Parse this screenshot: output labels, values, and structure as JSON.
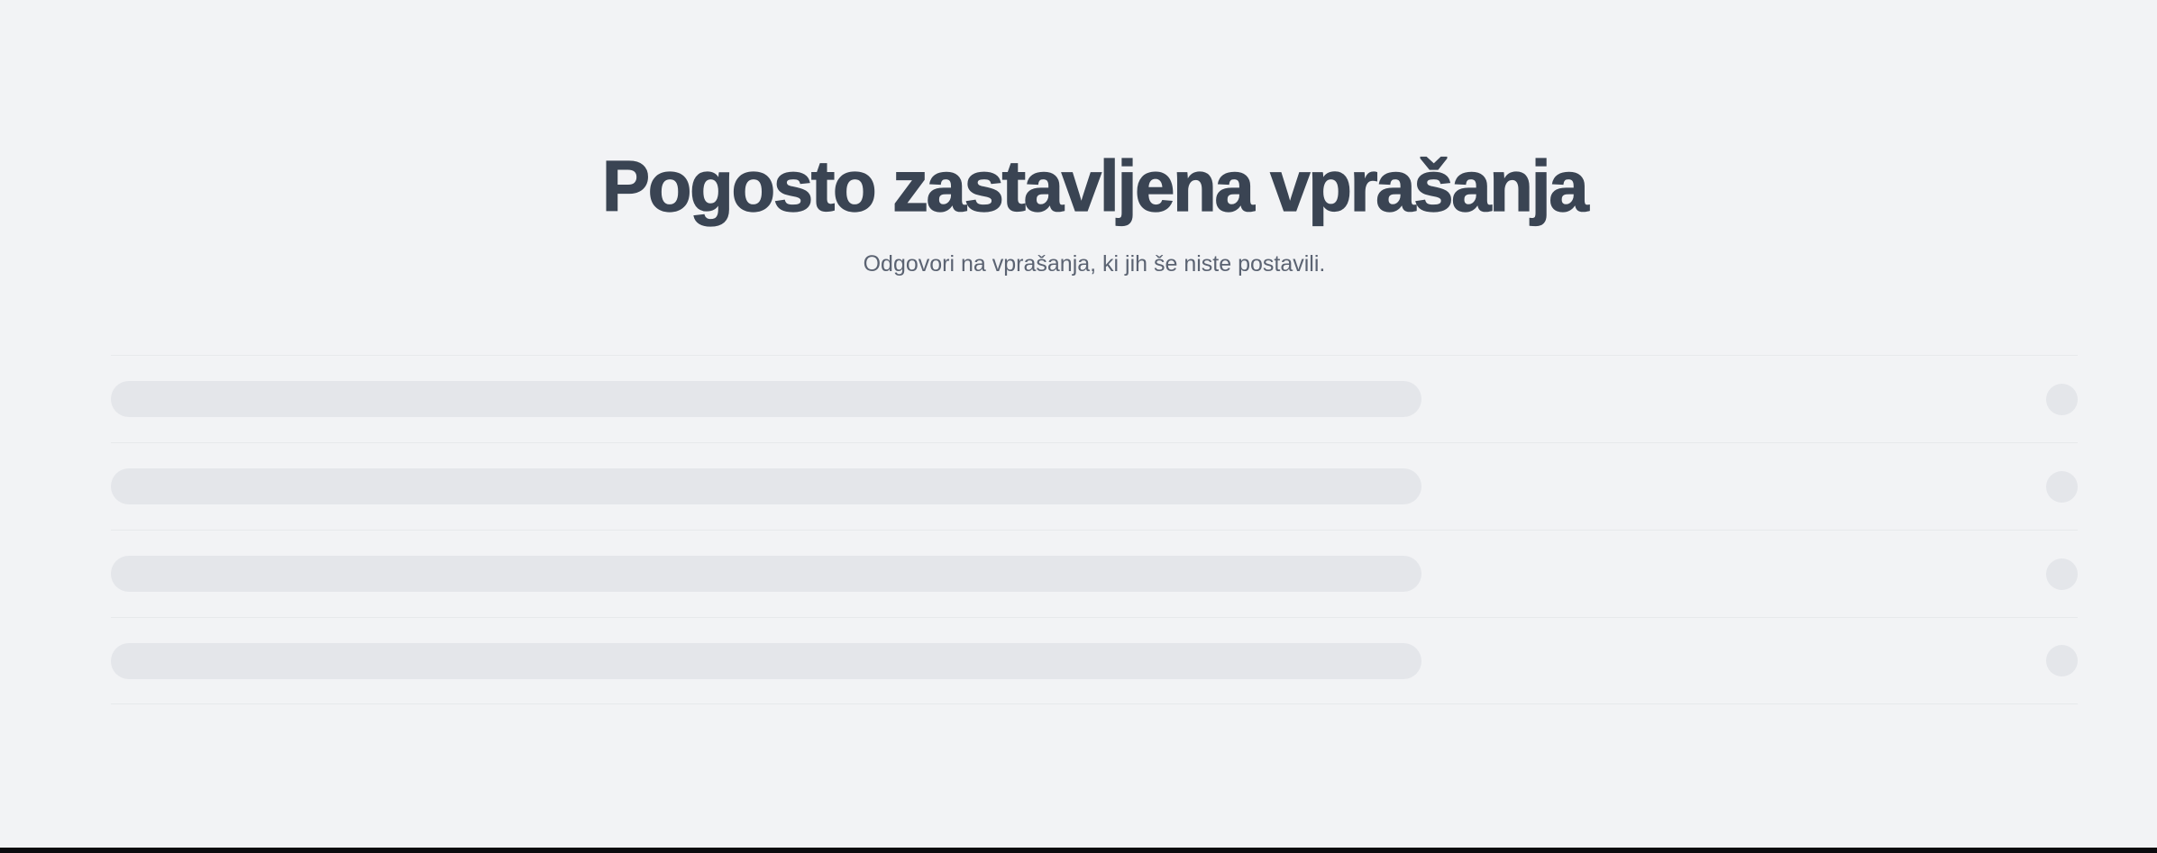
{
  "theme": {
    "page_bg": "#f2f3f5",
    "title_color": "#3a4453",
    "subtitle_color": "#5b6372",
    "skeleton_color": "#e4e6ea",
    "divider_color": "#e7e9eb",
    "bottom_bar_color": "#0b0b0e"
  },
  "hero": {
    "title": "Pogosto zastavljena vprašanja",
    "subtitle": "Odgovori na vprašanja, ki jih še niste postavili."
  },
  "faq": {
    "skeleton_count": 4
  }
}
